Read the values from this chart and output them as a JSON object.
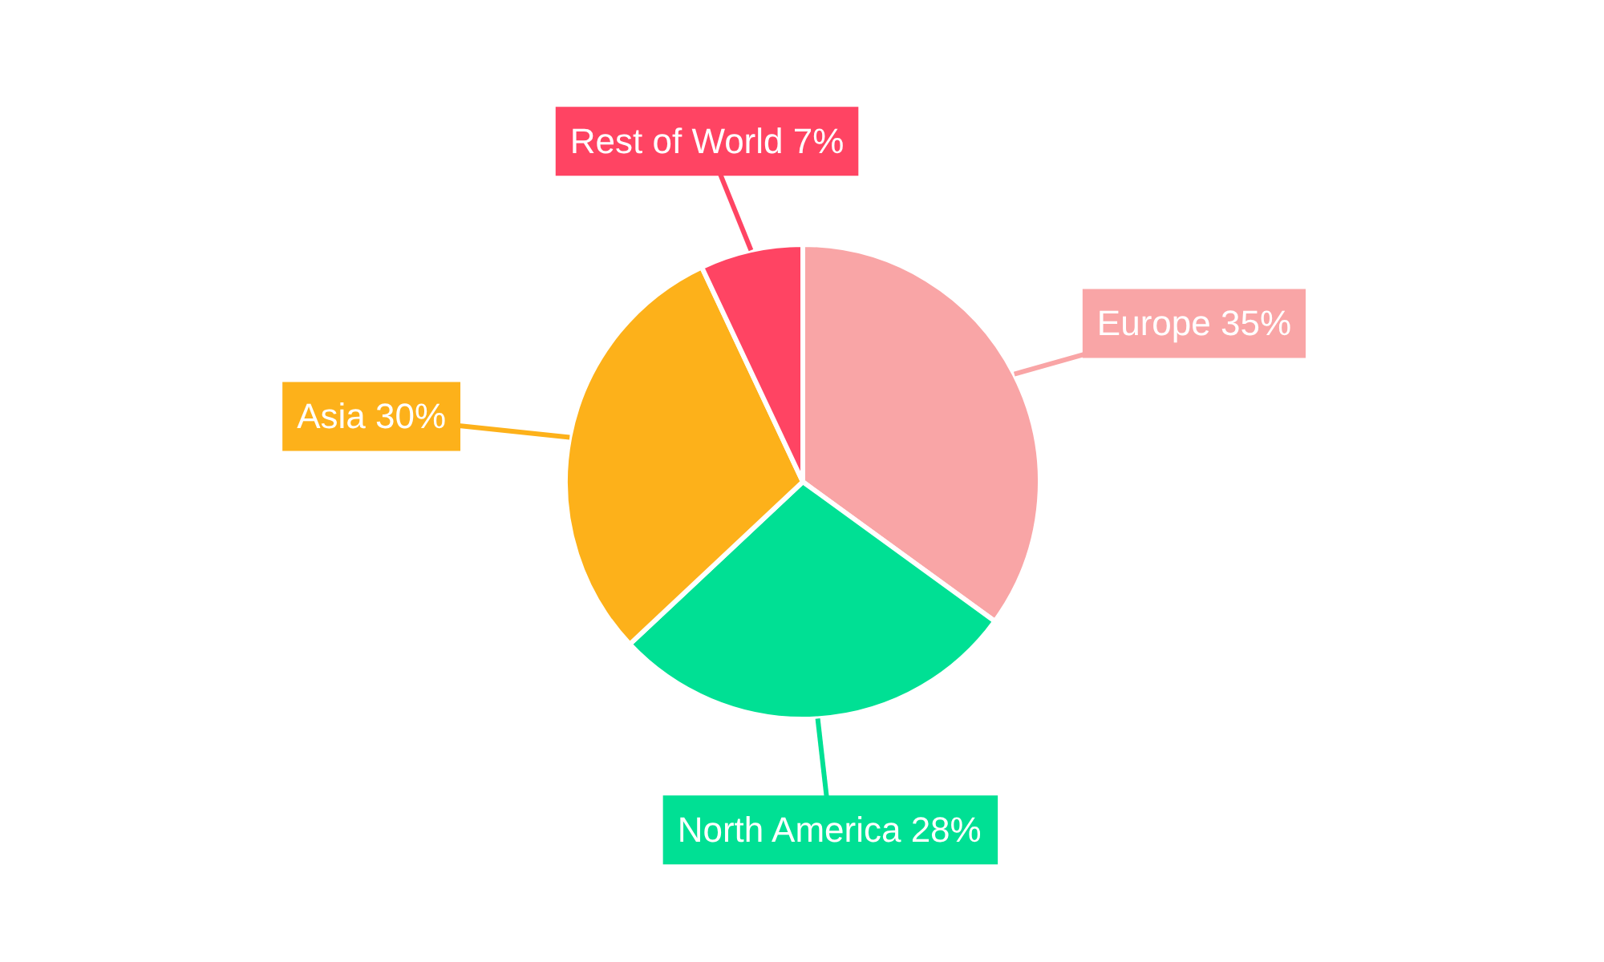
{
  "chart_data": {
    "type": "pie",
    "categories": [
      "Europe",
      "North America",
      "Asia",
      "Rest of World"
    ],
    "values": [
      35,
      28,
      30,
      7
    ],
    "colors": [
      "#f9a5a6",
      "#00e094",
      "#fdb11a",
      "#ff4463"
    ],
    "value_labels": [
      "35%",
      "28%",
      "30%",
      "7%"
    ]
  }
}
